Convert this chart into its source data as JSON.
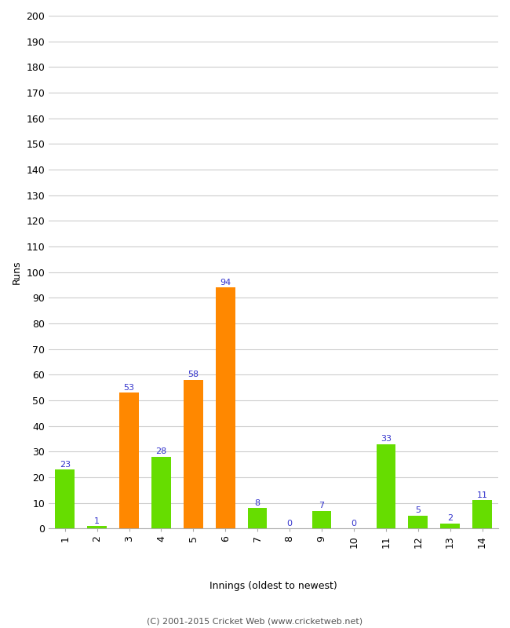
{
  "innings": [
    1,
    2,
    3,
    4,
    5,
    6,
    7,
    8,
    9,
    10,
    11,
    12,
    13,
    14
  ],
  "values": [
    23,
    1,
    53,
    28,
    58,
    94,
    8,
    0,
    7,
    0,
    33,
    5,
    2,
    11
  ],
  "colors": [
    "#66dd00",
    "#66dd00",
    "#ff8800",
    "#66dd00",
    "#ff8800",
    "#ff8800",
    "#66dd00",
    "#66dd00",
    "#66dd00",
    "#66dd00",
    "#66dd00",
    "#66dd00",
    "#66dd00",
    "#66dd00"
  ],
  "ylabel": "Runs",
  "xlabel": "Innings (oldest to newest)",
  "ylim": [
    0,
    200
  ],
  "yticks": [
    0,
    10,
    20,
    30,
    40,
    50,
    60,
    70,
    80,
    90,
    100,
    110,
    120,
    130,
    140,
    150,
    160,
    170,
    180,
    190,
    200
  ],
  "label_color": "#3333cc",
  "bar_width": 0.6,
  "background_color": "#ffffff",
  "grid_color": "#cccccc",
  "footer": "(C) 2001-2015 Cricket Web (www.cricketweb.net)"
}
